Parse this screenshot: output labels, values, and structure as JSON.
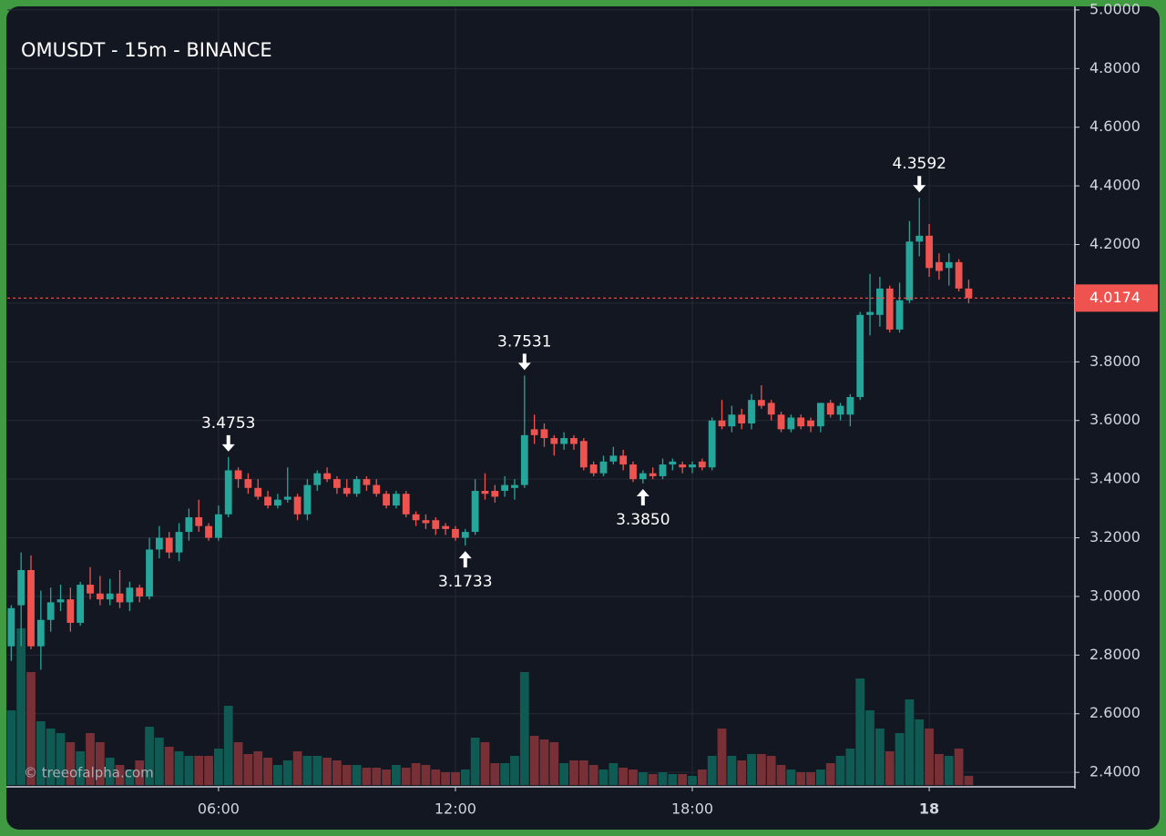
{
  "chart_data": {
    "type": "candlestick",
    "title": "OMUSDT - 15m - BINANCE",
    "watermark": "© treeofalpha.com",
    "x": [
      0.75,
      1,
      1.25,
      1.5,
      1.75,
      2,
      2.25,
      2.5,
      2.75,
      3,
      3.25,
      3.5,
      3.75,
      4,
      4.25,
      4.5,
      4.75,
      5,
      5.25,
      5.5,
      5.75,
      6,
      6.25,
      6.5,
      6.75,
      7,
      7.25,
      7.5,
      7.75,
      8,
      8.25,
      8.5,
      8.75,
      9,
      9.25,
      9.5,
      9.75,
      10,
      10.25,
      10.5,
      10.75,
      11,
      11.25,
      11.5,
      11.75,
      12,
      12.25,
      12.5,
      12.75,
      13,
      13.25,
      13.5,
      13.75,
      14,
      14.25,
      14.5,
      14.75,
      15,
      15.25,
      15.5,
      15.75,
      16,
      16.25,
      16.5,
      16.75,
      17,
      17.25,
      17.5,
      17.75,
      18,
      18.25,
      18.5,
      18.75,
      19,
      19.25,
      19.5,
      19.75,
      20,
      20.25,
      20.5,
      20.75,
      21,
      21.25,
      21.5,
      21.75,
      22,
      22.25,
      22.5,
      22.75,
      23,
      23.25,
      23.5,
      23.75,
      24,
      24.25,
      24.5,
      24.75,
      25
    ],
    "open": [
      2.83,
      2.97,
      3.09,
      2.83,
      2.92,
      2.98,
      2.99,
      2.91,
      3.04,
      3.01,
      2.99,
      3.01,
      2.98,
      3.03,
      3.0,
      3.16,
      3.2,
      3.15,
      3.22,
      3.27,
      3.24,
      3.2,
      3.28,
      3.43,
      3.4,
      3.37,
      3.34,
      3.31,
      3.33,
      3.34,
      3.28,
      3.38,
      3.42,
      3.4,
      3.37,
      3.35,
      3.4,
      3.38,
      3.35,
      3.31,
      3.35,
      3.28,
      3.26,
      3.26,
      3.24,
      3.23,
      3.2,
      3.22,
      3.36,
      3.36,
      3.36,
      3.37,
      3.38,
      3.57,
      3.57,
      3.54,
      3.52,
      3.54,
      3.53,
      3.45,
      3.42,
      3.46,
      3.48,
      3.45,
      3.4,
      3.42,
      3.41,
      3.45,
      3.45,
      3.44,
      3.46,
      3.44,
      3.6,
      3.58,
      3.62,
      3.59,
      3.67,
      3.66,
      3.62,
      3.57,
      3.61,
      3.6,
      3.58,
      3.66,
      3.62,
      3.62,
      3.68,
      3.96,
      3.96,
      4.05,
      3.91,
      4.01,
      4.21,
      4.23,
      4.14,
      4.12,
      4.14,
      4.05
    ],
    "high": [
      2.97,
      3.15,
      3.14,
      3.02,
      3.03,
      3.04,
      3.03,
      3.05,
      3.1,
      3.07,
      3.06,
      3.09,
      3.05,
      3.04,
      3.2,
      3.24,
      3.22,
      3.25,
      3.3,
      3.33,
      3.25,
      3.31,
      3.4753,
      3.44,
      3.42,
      3.4,
      3.36,
      3.35,
      3.44,
      3.35,
      3.4,
      3.43,
      3.44,
      3.41,
      3.4,
      3.41,
      3.41,
      3.4,
      3.36,
      3.36,
      3.36,
      3.29,
      3.28,
      3.27,
      3.25,
      3.24,
      3.23,
      3.4,
      3.42,
      3.38,
      3.41,
      3.4,
      3.7531,
      3.62,
      3.59,
      3.55,
      3.56,
      3.55,
      3.54,
      3.46,
      3.48,
      3.51,
      3.5,
      3.46,
      3.43,
      3.44,
      3.47,
      3.47,
      3.46,
      3.46,
      3.47,
      3.61,
      3.67,
      3.65,
      3.64,
      3.69,
      3.72,
      3.67,
      3.63,
      3.62,
      3.62,
      3.61,
      3.66,
      3.67,
      3.66,
      3.69,
      3.97,
      4.1,
      4.09,
      4.06,
      4.07,
      4.28,
      4.3592,
      4.27,
      4.17,
      4.17,
      4.15,
      4.08
    ],
    "low": [
      2.78,
      2.83,
      2.82,
      2.75,
      2.88,
      2.95,
      2.88,
      2.9,
      2.99,
      2.97,
      2.97,
      2.96,
      2.95,
      2.98,
      2.99,
      3.13,
      3.13,
      3.12,
      3.19,
      3.22,
      3.19,
      3.19,
      3.27,
      3.37,
      3.35,
      3.33,
      3.3,
      3.3,
      3.32,
      3.26,
      3.26,
      3.36,
      3.39,
      3.35,
      3.34,
      3.34,
      3.36,
      3.34,
      3.3,
      3.3,
      3.27,
      3.24,
      3.23,
      3.21,
      3.21,
      3.19,
      3.1733,
      3.21,
      3.33,
      3.32,
      3.34,
      3.33,
      3.37,
      3.52,
      3.51,
      3.48,
      3.5,
      3.5,
      3.43,
      3.41,
      3.41,
      3.45,
      3.43,
      3.39,
      3.385,
      3.4,
      3.4,
      3.43,
      3.42,
      3.42,
      3.43,
      3.43,
      3.57,
      3.56,
      3.57,
      3.57,
      3.64,
      3.6,
      3.56,
      3.56,
      3.57,
      3.56,
      3.56,
      3.61,
      3.6,
      3.58,
      3.67,
      3.89,
      3.92,
      3.9,
      3.9,
      4.0,
      4.16,
      4.09,
      4.08,
      4.06,
      4.04,
      4.0
    ],
    "close": [
      2.96,
      3.09,
      2.83,
      2.92,
      2.98,
      2.99,
      2.91,
      3.04,
      3.01,
      2.99,
      3.01,
      2.98,
      3.03,
      3.0,
      3.16,
      3.2,
      3.15,
      3.22,
      3.27,
      3.24,
      3.2,
      3.28,
      3.43,
      3.4,
      3.37,
      3.34,
      3.31,
      3.33,
      3.34,
      3.28,
      3.38,
      3.42,
      3.4,
      3.37,
      3.35,
      3.4,
      3.38,
      3.35,
      3.31,
      3.35,
      3.28,
      3.26,
      3.25,
      3.23,
      3.23,
      3.2,
      3.22,
      3.36,
      3.35,
      3.34,
      3.38,
      3.38,
      3.55,
      3.55,
      3.54,
      3.52,
      3.54,
      3.52,
      3.44,
      3.42,
      3.46,
      3.48,
      3.45,
      3.4,
      3.42,
      3.41,
      3.45,
      3.46,
      3.44,
      3.45,
      3.44,
      3.6,
      3.58,
      3.62,
      3.59,
      3.67,
      3.65,
      3.62,
      3.57,
      3.61,
      3.58,
      3.58,
      3.66,
      3.62,
      3.65,
      3.68,
      3.96,
      3.97,
      4.05,
      3.91,
      4.01,
      4.21,
      4.23,
      4.12,
      4.11,
      4.14,
      4.05,
      4.0174
    ],
    "volume": [
      82,
      172,
      124,
      70,
      62,
      57,
      47,
      37,
      57,
      47,
      30,
      22,
      17,
      27,
      64,
      52,
      42,
      37,
      32,
      32,
      32,
      40,
      87,
      47,
      34,
      37,
      30,
      22,
      27,
      37,
      32,
      32,
      30,
      27,
      22,
      22,
      19,
      19,
      17,
      22,
      19,
      24,
      22,
      17,
      14,
      14,
      17,
      52,
      47,
      24,
      24,
      32,
      124,
      54,
      50,
      47,
      24,
      27,
      27,
      22,
      17,
      24,
      19,
      17,
      14,
      12,
      14,
      12,
      12,
      10,
      17,
      32,
      62,
      32,
      27,
      34,
      34,
      32,
      22,
      17,
      14,
      14,
      17,
      24,
      32,
      40,
      117,
      82,
      62,
      37,
      57,
      94,
      72,
      62,
      34,
      32,
      40,
      10
    ],
    "volume_lim": [
      0,
      854
    ],
    "up_color": "#26a69a",
    "down_color": "#ef5350",
    "volume_up_color": "#0f5a53",
    "volume_down_color": "#773035",
    "xlim": [
      0.65,
      27.69
    ],
    "xticks": [
      {
        "value": 6,
        "label": "06:00"
      },
      {
        "value": 12,
        "label": "12:00"
      },
      {
        "value": 18,
        "label": "18:00"
      },
      {
        "value": 24,
        "label": "18"
      }
    ],
    "ylim": [
      2.357,
      5.009
    ],
    "yticks": [
      {
        "value": 2.4,
        "label": "2.4000"
      },
      {
        "value": 2.6,
        "label": "2.6000"
      },
      {
        "value": 2.8,
        "label": "2.8000"
      },
      {
        "value": 3.0,
        "label": "3.0000"
      },
      {
        "value": 3.2,
        "label": "3.2000"
      },
      {
        "value": 3.4,
        "label": "3.4000"
      },
      {
        "value": 3.6,
        "label": "3.6000"
      },
      {
        "value": 3.8,
        "label": "3.8000"
      },
      {
        "value": 4.0,
        "label": "4.0000"
      },
      {
        "value": 4.2,
        "label": "4.2000"
      },
      {
        "value": 4.4,
        "label": "4.4000"
      },
      {
        "value": 4.6,
        "label": "4.6000"
      },
      {
        "value": 4.8,
        "label": "4.8000"
      },
      {
        "value": 5.0,
        "label": "5.0000"
      }
    ],
    "grid": true,
    "last_price": {
      "value": 4.0174,
      "label": "4.0174"
    },
    "annotations": [
      {
        "x": 6.25,
        "value": 3.4753,
        "label": "3.4753",
        "position": "above"
      },
      {
        "x": 12.25,
        "value": 3.1733,
        "label": "3.1733",
        "position": "below"
      },
      {
        "x": 13.75,
        "value": 3.7531,
        "label": "3.7531",
        "position": "above"
      },
      {
        "x": 16.75,
        "value": 3.385,
        "label": "3.3850",
        "position": "below"
      },
      {
        "x": 23.75,
        "value": 4.3592,
        "label": "4.3592",
        "position": "above"
      }
    ]
  }
}
